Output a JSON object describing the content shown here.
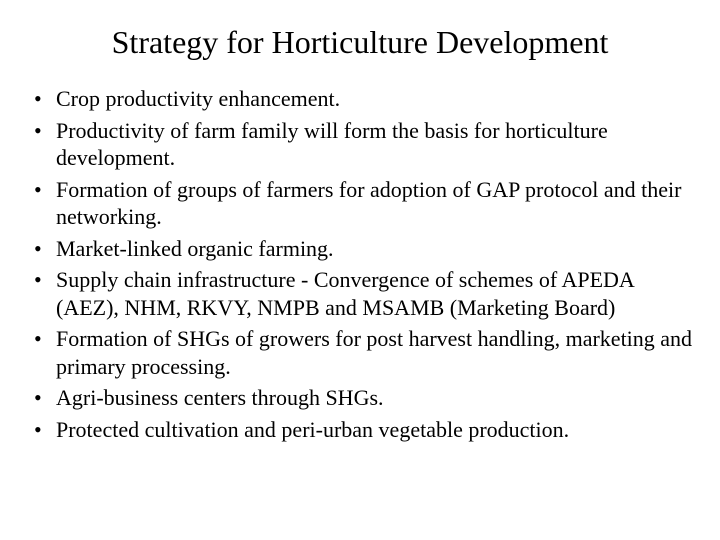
{
  "slide": {
    "title": "Strategy for Horticulture Development",
    "title_color": "#000000",
    "title_fontsize": 32,
    "background_color": "#ffffff",
    "body_fontsize": 22,
    "body_color": "#000000",
    "font_family": "Times New Roman",
    "bullets": [
      "Crop productivity enhancement.",
      "Productivity of farm family will form the basis for horticulture development.",
      "Formation of groups of farmers for adoption of GAP protocol and their networking.",
      "Market-linked organic farming.",
      "Supply chain infrastructure - Convergence of schemes of APEDA (AEZ), NHM, RKVY, NMPB and MSAMB (Marketing Board)",
      "Formation of SHGs of growers for post harvest handling, marketing and primary processing.",
      "Agri-business centers through SHGs.",
      "Protected cultivation and peri-urban vegetable production."
    ]
  }
}
